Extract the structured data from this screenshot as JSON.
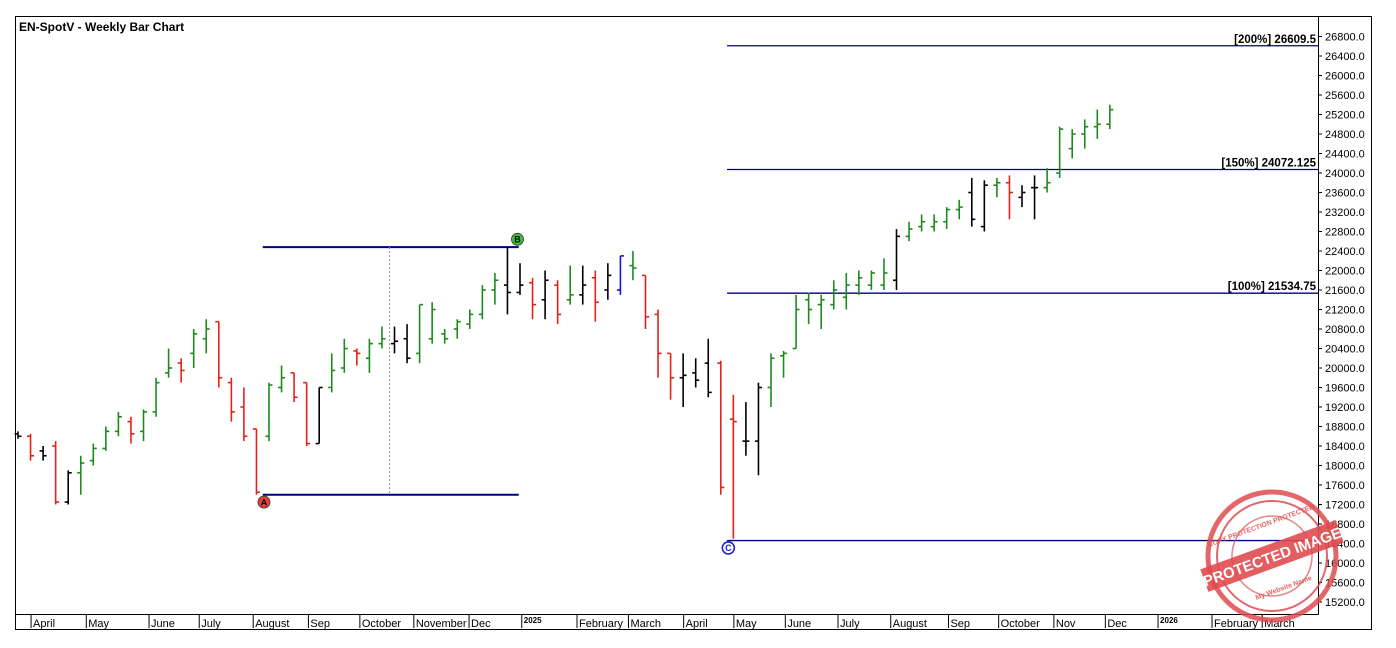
{
  "chart_data": {
    "type": "bar",
    "title": "EN-SpotV - Weekly Bar Chart",
    "ylim": [
      14900,
      27300
    ],
    "y_ticks": [
      26800,
      26400,
      26000,
      25600,
      25200,
      24800,
      24400,
      24000,
      23600,
      23200,
      22800,
      22400,
      22000,
      21600,
      21200,
      20800,
      20400,
      20000,
      19600,
      19200,
      18800,
      18400,
      18000,
      17600,
      17200,
      16800,
      16400,
      16000,
      15600,
      15200
    ],
    "y_tick_labels": [
      "26800.0",
      "26400.0",
      "26000.0",
      "25600.0",
      "25200.0",
      "24800.0",
      "24400.0",
      "24000.0",
      "23600.0",
      "23200.0",
      "22800.0",
      "22400.0",
      "22000.0",
      "21600.0",
      "21200.0",
      "20800.0",
      "20400.0",
      "20000.0",
      "19600.0",
      "19200.0",
      "18800.0",
      "18400.0",
      "18000.0",
      "17600.0",
      "17200.0",
      "16800.0",
      "16400.0",
      "16000.0",
      "15600.0",
      "15200.0"
    ],
    "x_labels": [
      {
        "text": "April",
        "i": 1.2
      },
      {
        "text": "May",
        "i": 5.6
      },
      {
        "text": "June",
        "i": 10.6
      },
      {
        "text": "July",
        "i": 14.6
      },
      {
        "text": "August",
        "i": 18.9
      },
      {
        "text": "Sep",
        "i": 23.3
      },
      {
        "text": "October",
        "i": 27.4
      },
      {
        "text": "November",
        "i": 31.7
      },
      {
        "text": "Dec",
        "i": 36.1
      },
      {
        "text": "2025",
        "i": 40.3,
        "year": true
      },
      {
        "text": "February",
        "i": 44.7
      },
      {
        "text": "March",
        "i": 48.8
      },
      {
        "text": "April",
        "i": 53.2
      },
      {
        "text": "May",
        "i": 57.2
      },
      {
        "text": "June",
        "i": 61.3
      },
      {
        "text": "July",
        "i": 65.5
      },
      {
        "text": "August",
        "i": 69.7
      },
      {
        "text": "Sep",
        "i": 74.3
      },
      {
        "text": "October",
        "i": 78.3
      },
      {
        "text": "Nov",
        "i": 82.7
      },
      {
        "text": "Dec",
        "i": 86.8
      },
      {
        "text": "2026",
        "i": 91.0,
        "year": true
      },
      {
        "text": "February",
        "i": 95.3
      },
      {
        "text": "March",
        "i": 99.3
      }
    ],
    "bars": [
      {
        "o": 18650,
        "h": 18700,
        "l": 18550,
        "c": 18600,
        "color": "black"
      },
      {
        "o": 18600,
        "h": 18650,
        "l": 18100,
        "c": 18200,
        "color": "red"
      },
      {
        "o": 18300,
        "h": 18400,
        "l": 18100,
        "c": 18200,
        "color": "black"
      },
      {
        "o": 18400,
        "h": 18500,
        "l": 17200,
        "c": 17250,
        "color": "red"
      },
      {
        "o": 17250,
        "h": 17900,
        "l": 17200,
        "c": 17850,
        "color": "black"
      },
      {
        "o": 17850,
        "h": 18200,
        "l": 17400,
        "c": 18050,
        "color": "green"
      },
      {
        "o": 18100,
        "h": 18450,
        "l": 18000,
        "c": 18350,
        "color": "green"
      },
      {
        "o": 18350,
        "h": 18800,
        "l": 18300,
        "c": 18700,
        "color": "green"
      },
      {
        "o": 18700,
        "h": 19100,
        "l": 18600,
        "c": 19000,
        "color": "green"
      },
      {
        "o": 18900,
        "h": 19000,
        "l": 18450,
        "c": 18650,
        "color": "red"
      },
      {
        "o": 18700,
        "h": 19150,
        "l": 18500,
        "c": 19100,
        "color": "green"
      },
      {
        "o": 19100,
        "h": 19800,
        "l": 19000,
        "c": 19700,
        "color": "green"
      },
      {
        "o": 19900,
        "h": 20400,
        "l": 19800,
        "c": 20000,
        "color": "green"
      },
      {
        "o": 20100,
        "h": 20200,
        "l": 19700,
        "c": 19950,
        "color": "red"
      },
      {
        "o": 20300,
        "h": 20800,
        "l": 20000,
        "c": 20700,
        "color": "green"
      },
      {
        "o": 20600,
        "h": 21000,
        "l": 20300,
        "c": 20800,
        "color": "green"
      },
      {
        "o": 20950,
        "h": 20950,
        "l": 19600,
        "c": 19800,
        "color": "red"
      },
      {
        "o": 19700,
        "h": 19800,
        "l": 18900,
        "c": 19100,
        "color": "red"
      },
      {
        "o": 19200,
        "h": 19600,
        "l": 18500,
        "c": 18600,
        "color": "red"
      },
      {
        "o": 18750,
        "h": 18750,
        "l": 17400,
        "c": 17450,
        "color": "red"
      },
      {
        "o": 18600,
        "h": 19700,
        "l": 18500,
        "c": 19650,
        "color": "green"
      },
      {
        "o": 19600,
        "h": 20050,
        "l": 19500,
        "c": 19800,
        "color": "green"
      },
      {
        "o": 19900,
        "h": 19900,
        "l": 19300,
        "c": 19400,
        "color": "red"
      },
      {
        "o": 19700,
        "h": 19700,
        "l": 18400,
        "c": 18450,
        "color": "red"
      },
      {
        "o": 18450,
        "h": 19600,
        "l": 18450,
        "c": 19600,
        "color": "black"
      },
      {
        "o": 19600,
        "h": 20300,
        "l": 19500,
        "c": 19950,
        "color": "green"
      },
      {
        "o": 20000,
        "h": 20600,
        "l": 19900,
        "c": 20400,
        "color": "green"
      },
      {
        "o": 20350,
        "h": 20400,
        "l": 20050,
        "c": 20300,
        "color": "red"
      },
      {
        "o": 20200,
        "h": 20600,
        "l": 19900,
        "c": 20500,
        "color": "green"
      },
      {
        "o": 20500,
        "h": 20850,
        "l": 20400,
        "c": 20600,
        "color": "green"
      },
      {
        "o": 20500,
        "h": 20850,
        "l": 20300,
        "c": 20550,
        "color": "black"
      },
      {
        "o": 20600,
        "h": 20900,
        "l": 20100,
        "c": 20200,
        "color": "black"
      },
      {
        "o": 20300,
        "h": 21300,
        "l": 20100,
        "c": 21300,
        "color": "green"
      },
      {
        "o": 20600,
        "h": 21350,
        "l": 20500,
        "c": 21200,
        "color": "green"
      },
      {
        "o": 20700,
        "h": 20800,
        "l": 20500,
        "c": 20600,
        "color": "green"
      },
      {
        "o": 20800,
        "h": 21000,
        "l": 20600,
        "c": 20950,
        "color": "green"
      },
      {
        "o": 20900,
        "h": 21200,
        "l": 20800,
        "c": 21100,
        "color": "green"
      },
      {
        "o": 21100,
        "h": 21700,
        "l": 21000,
        "c": 21600,
        "color": "green"
      },
      {
        "o": 21600,
        "h": 21950,
        "l": 21300,
        "c": 21800,
        "color": "green"
      },
      {
        "o": 21700,
        "h": 22480,
        "l": 21100,
        "c": 21550,
        "color": "black"
      },
      {
        "o": 21550,
        "h": 22150,
        "l": 21500,
        "c": 21700,
        "color": "black"
      },
      {
        "o": 21750,
        "h": 21850,
        "l": 21000,
        "c": 21300,
        "color": "red"
      },
      {
        "o": 21400,
        "h": 22000,
        "l": 21000,
        "c": 21800,
        "color": "black"
      },
      {
        "o": 21700,
        "h": 21800,
        "l": 20900,
        "c": 21100,
        "color": "red"
      },
      {
        "o": 21400,
        "h": 22100,
        "l": 21300,
        "c": 21500,
        "color": "green"
      },
      {
        "o": 21500,
        "h": 22100,
        "l": 21300,
        "c": 21700,
        "color": "black"
      },
      {
        "o": 21850,
        "h": 22000,
        "l": 20950,
        "c": 21350,
        "color": "red"
      },
      {
        "o": 21600,
        "h": 22150,
        "l": 21400,
        "c": 21900,
        "color": "black"
      },
      {
        "o": 21600,
        "h": 22300,
        "l": 21500,
        "c": 22300,
        "color": "blue"
      },
      {
        "o": 22100,
        "h": 22400,
        "l": 21800,
        "c": 22050,
        "color": "green"
      },
      {
        "o": 21900,
        "h": 21900,
        "l": 20800,
        "c": 21050,
        "color": "red"
      },
      {
        "o": 21100,
        "h": 21200,
        "l": 19800,
        "c": 20300,
        "color": "red"
      },
      {
        "o": 20300,
        "h": 20300,
        "l": 19350,
        "c": 19800,
        "color": "red"
      },
      {
        "o": 19800,
        "h": 20300,
        "l": 19200,
        "c": 19850,
        "color": "black"
      },
      {
        "o": 19900,
        "h": 20200,
        "l": 19600,
        "c": 19750,
        "color": "black"
      },
      {
        "o": 20100,
        "h": 20600,
        "l": 19400,
        "c": 19500,
        "color": "black"
      },
      {
        "o": 20100,
        "h": 20150,
        "l": 17400,
        "c": 17550,
        "color": "red"
      },
      {
        "o": 18950,
        "h": 19450,
        "l": 16500,
        "c": 18900,
        "color": "red"
      },
      {
        "o": 18500,
        "h": 19300,
        "l": 18200,
        "c": 18500,
        "color": "black"
      },
      {
        "o": 18500,
        "h": 19700,
        "l": 17800,
        "c": 19600,
        "color": "black"
      },
      {
        "o": 19600,
        "h": 20300,
        "l": 19200,
        "c": 20200,
        "color": "green"
      },
      {
        "o": 20250,
        "h": 20350,
        "l": 19800,
        "c": 20300,
        "color": "green"
      },
      {
        "o": 20400,
        "h": 21500,
        "l": 20400,
        "c": 21200,
        "color": "green"
      },
      {
        "o": 21400,
        "h": 21550,
        "l": 20900,
        "c": 21200,
        "color": "green"
      },
      {
        "o": 21300,
        "h": 21500,
        "l": 20800,
        "c": 21400,
        "color": "green"
      },
      {
        "o": 21300,
        "h": 21800,
        "l": 21200,
        "c": 21600,
        "color": "green"
      },
      {
        "o": 21450,
        "h": 21950,
        "l": 21200,
        "c": 21700,
        "color": "green"
      },
      {
        "o": 21700,
        "h": 22000,
        "l": 21500,
        "c": 21850,
        "color": "green"
      },
      {
        "o": 21700,
        "h": 22000,
        "l": 21600,
        "c": 21950,
        "color": "green"
      },
      {
        "o": 21700,
        "h": 22250,
        "l": 21600,
        "c": 21950,
        "color": "green"
      },
      {
        "o": 21800,
        "h": 22850,
        "l": 21600,
        "c": 22700,
        "color": "black"
      },
      {
        "o": 22700,
        "h": 23000,
        "l": 22600,
        "c": 22850,
        "color": "green"
      },
      {
        "o": 22900,
        "h": 23150,
        "l": 22800,
        "c": 23000,
        "color": "green"
      },
      {
        "o": 22900,
        "h": 23150,
        "l": 22800,
        "c": 23000,
        "color": "green"
      },
      {
        "o": 23000,
        "h": 23300,
        "l": 22850,
        "c": 23250,
        "color": "green"
      },
      {
        "o": 23250,
        "h": 23450,
        "l": 23050,
        "c": 23300,
        "color": "green"
      },
      {
        "o": 23600,
        "h": 23900,
        "l": 22900,
        "c": 23050,
        "color": "black"
      },
      {
        "o": 22900,
        "h": 23850,
        "l": 22800,
        "c": 23750,
        "color": "black"
      },
      {
        "o": 23750,
        "h": 23900,
        "l": 23500,
        "c": 23800,
        "color": "green"
      },
      {
        "o": 23800,
        "h": 23950,
        "l": 23050,
        "c": 23600,
        "color": "red"
      },
      {
        "o": 23500,
        "h": 23750,
        "l": 23300,
        "c": 23600,
        "color": "black"
      },
      {
        "o": 23700,
        "h": 23950,
        "l": 23050,
        "c": 23700,
        "color": "black"
      },
      {
        "o": 23700,
        "h": 24100,
        "l": 23600,
        "c": 23800,
        "color": "green"
      },
      {
        "o": 24000,
        "h": 24950,
        "l": 23900,
        "c": 24900,
        "color": "green"
      },
      {
        "o": 24500,
        "h": 24900,
        "l": 24300,
        "c": 24800,
        "color": "green"
      },
      {
        "o": 24800,
        "h": 25100,
        "l": 24500,
        "c": 24950,
        "color": "green"
      },
      {
        "o": 24950,
        "h": 25300,
        "l": 24700,
        "c": 25000,
        "color": "green"
      },
      {
        "o": 25000,
        "h": 25400,
        "l": 24900,
        "c": 25300,
        "color": "green"
      }
    ],
    "levels": [
      {
        "label": "[200%] 26609.5",
        "value": 26609.5,
        "from_i": 56.5
      },
      {
        "label": "[150%] 24072.125",
        "value": 24072.125,
        "from_i": 56.5
      },
      {
        "label": "[100%] 21534.75",
        "value": 21534.75,
        "from_i": 56.5
      },
      {
        "label": "",
        "value": 16460,
        "from_i": 56.5
      }
    ],
    "range_lines": [
      {
        "value": 22480,
        "from_i": 19.5,
        "to_i": 39.9
      },
      {
        "value": 17400,
        "from_i": 19.5,
        "to_i": 39.9
      }
    ],
    "vertical_dotted": {
      "i": 29.6,
      "from": 17400,
      "to": 22480
    },
    "markers": [
      {
        "label": "A",
        "i": 19.6,
        "value": 17250,
        "color": "#e5413b"
      },
      {
        "label": "B",
        "i": 39.8,
        "value": 22640,
        "color": "#3cc13c"
      },
      {
        "label": "C",
        "i": 56.6,
        "value": 16310,
        "color": "#ffffff",
        "ring": "#2222cc",
        "text_color": "#2222cc"
      }
    ],
    "colors": {
      "green": "#1e8a1e",
      "red": "#e52216",
      "black": "#000000",
      "blue": "#1515d8",
      "level": "#000080"
    },
    "grid": false
  },
  "watermark": {
    "main": "PROTECTED IMAGE",
    "ring_top": "COPY PROTECTION PROTECTED",
    "ring_bottom": "My Website Name"
  }
}
